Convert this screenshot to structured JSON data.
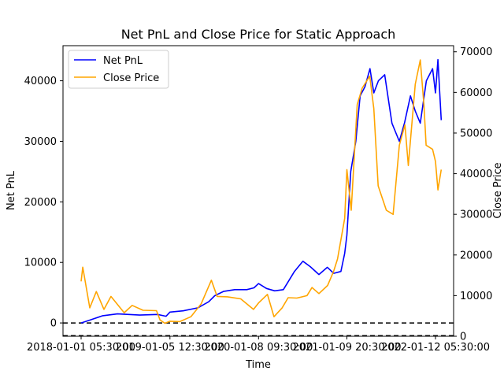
{
  "chart_data": {
    "type": "line",
    "title": "Net PnL and Close Price for Static Approach",
    "xlabel": "Time",
    "ylabel_left": "Net PnL",
    "ylabel_right": "Close Price",
    "x_ticks": [
      "2018-01-01 05:30:00",
      "2019-01-05 12:30:00",
      "2020-01-08 09:30:00",
      "2021-01-09 20:30:00",
      "2022-01-12 05:30:00"
    ],
    "y_left_ticks": [
      0,
      10000,
      20000,
      30000,
      40000
    ],
    "y_right_ticks": [
      0,
      10000,
      20000,
      30000,
      40000,
      50000,
      60000,
      70000
    ],
    "y_left_range": [
      -2200,
      45800
    ],
    "y_right_range": [
      0,
      71500
    ],
    "reference_lines_left": [
      0,
      -2100
    ],
    "legend_position": "upper-left",
    "series": [
      {
        "name": "Net PnL",
        "axis": "left",
        "color": "#0000ff",
        "x": [
          "2018-01-01",
          "2018-02-01",
          "2018-04-01",
          "2018-06-01",
          "2018-09-01",
          "2018-11-15",
          "2018-12-20",
          "2019-01-05",
          "2019-03-01",
          "2019-05-01",
          "2019-06-15",
          "2019-07-10",
          "2019-08-15",
          "2019-10-01",
          "2019-11-20",
          "2019-12-20",
          "2020-01-08",
          "2020-02-10",
          "2020-03-15",
          "2020-04-20",
          "2020-05-10",
          "2020-06-05",
          "2020-07-10",
          "2020-08-10",
          "2020-09-15",
          "2020-10-20",
          "2020-11-15",
          "2020-12-15",
          "2020-12-31",
          "2021-01-09",
          "2021-01-25",
          "2021-02-15",
          "2021-03-05",
          "2021-03-25",
          "2021-04-15",
          "2021-05-01",
          "2021-05-20",
          "2021-06-15",
          "2021-07-15",
          "2021-08-15",
          "2021-09-05",
          "2021-09-30",
          "2021-10-20",
          "2021-11-10",
          "2021-12-05",
          "2021-12-31",
          "2022-01-12",
          "2022-01-22",
          "2022-02-05"
        ],
        "values": [
          0,
          400,
          1200,
          1500,
          1300,
          1400,
          1100,
          1800,
          2000,
          2500,
          3500,
          4500,
          5200,
          5500,
          5500,
          5800,
          6500,
          5700,
          5300,
          5500,
          6800,
          8500,
          10200,
          9300,
          8000,
          9200,
          8200,
          8500,
          11500,
          14500,
          25000,
          30000,
          37500,
          39000,
          42000,
          38000,
          40000,
          41000,
          33000,
          30000,
          33000,
          37500,
          35000,
          33000,
          40000,
          42000,
          38000,
          43500,
          33500
        ]
      },
      {
        "name": "Close Price",
        "axis": "right",
        "color": "#ffa500",
        "x": [
          "2018-01-01",
          "2018-01-08",
          "2018-02-06",
          "2018-03-05",
          "2018-04-06",
          "2018-05-05",
          "2018-06-29",
          "2018-08-01",
          "2018-09-15",
          "2018-11-10",
          "2018-11-25",
          "2018-12-15",
          "2019-01-05",
          "2019-02-15",
          "2019-04-02",
          "2019-05-15",
          "2019-06-26",
          "2019-07-20",
          "2019-09-01",
          "2019-10-26",
          "2019-12-18",
          "2020-01-08",
          "2020-02-14",
          "2020-03-12",
          "2020-04-15",
          "2020-05-10",
          "2020-06-15",
          "2020-07-27",
          "2020-08-17",
          "2020-09-15",
          "2020-10-21",
          "2020-11-15",
          "2020-12-01",
          "2020-12-31",
          "2021-01-09",
          "2021-01-27",
          "2021-02-21",
          "2021-03-13",
          "2021-04-14",
          "2021-05-01",
          "2021-05-19",
          "2021-06-22",
          "2021-07-20",
          "2021-08-15",
          "2021-09-07",
          "2021-09-21",
          "2021-10-20",
          "2021-11-10",
          "2021-11-25",
          "2021-12-04",
          "2021-12-31",
          "2022-01-12",
          "2022-01-22",
          "2022-02-05"
        ],
        "values": [
          13500,
          17000,
          7000,
          11000,
          6600,
          9800,
          5800,
          7600,
          6400,
          6300,
          4000,
          3200,
          3700,
          3600,
          4800,
          8000,
          13800,
          9800,
          9700,
          9200,
          6600,
          8200,
          10300,
          4800,
          7000,
          9500,
          9400,
          10000,
          12000,
          10500,
          12500,
          16000,
          19000,
          29000,
          41000,
          31000,
          57000,
          61000,
          64000,
          56000,
          37000,
          31000,
          30000,
          47000,
          52000,
          42000,
          62000,
          68000,
          57000,
          47000,
          46000,
          43000,
          36000,
          41000
        ]
      }
    ]
  }
}
